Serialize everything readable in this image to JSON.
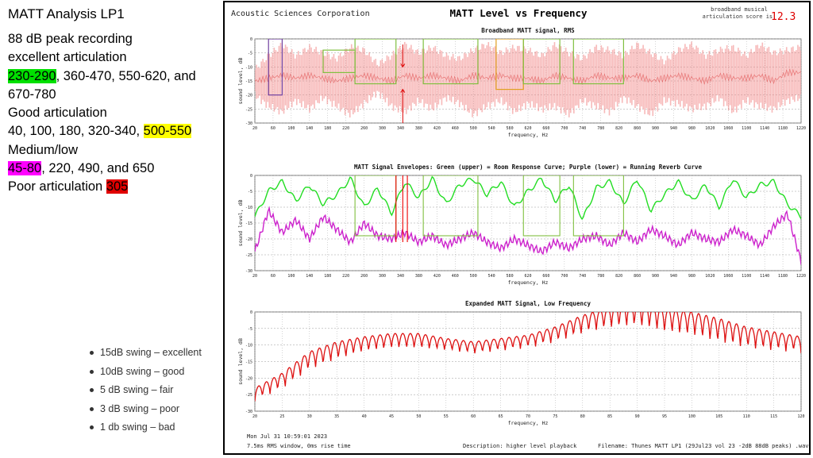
{
  "left_panel": {
    "title": "MATT Analysis LP1",
    "lines": [
      [
        {
          "t": "88 dB peak recording"
        }
      ],
      [
        {
          "t": "excellent articulation"
        }
      ],
      [
        {
          "t": "230-290",
          "hl": "green"
        },
        {
          "t": ", 360-470, 550-620, and"
        }
      ],
      [
        {
          "t": "670-780"
        }
      ],
      [
        {
          "t": "Good articulation"
        }
      ],
      [
        {
          "t": "40, 100, 180, 320-340, "
        },
        {
          "t": "500-550",
          "hl": "yellow"
        }
      ],
      [
        {
          "t": "Medium/low"
        }
      ],
      [
        {
          "t": "45-80",
          "hl": "magenta"
        },
        {
          "t": ", 220, 490, and 650"
        }
      ],
      [
        {
          "t": "Poor articulation "
        },
        {
          "t": "305",
          "hl": "red"
        }
      ]
    ],
    "bullets": [
      "15dB swing – excellent",
      "10dB swing – good",
      "5 dB swing – fair",
      "3 dB swing – poor",
      "1 db swing – bad"
    ]
  },
  "figure": {
    "company": "Acoustic Sciences Corporation",
    "main_title": "MATT Level vs Frequency",
    "score_label_1": "broadband musical",
    "score_label_2": "articulation score is:",
    "score_value": "12.3",
    "footer_date": "Mon Jul 31 10:59:01 2023",
    "footer_window": "7.5ms RMS window, 0ms rise time",
    "footer_description": "Description: higher level playback",
    "footer_filename": "Filename: Thunes MATT LP1 (29Jul23 vol 23 -2dB 88dB peaks) .wav",
    "colors": {
      "broadband": "#f08080",
      "upper": "#22dd22",
      "lower": "#cc22cc",
      "low_freq": "#dd1111",
      "score": "#dd0000"
    }
  },
  "chart_data": [
    {
      "type": "area",
      "title": "Broadband MATT signal, RMS",
      "xlabel": "frequency, Hz",
      "ylabel": "sound level, dB",
      "xlim": [
        20,
        1220
      ],
      "ylim": [
        -30,
        0
      ],
      "xticks": [
        20,
        60,
        100,
        140,
        180,
        220,
        260,
        300,
        340,
        380,
        420,
        460,
        500,
        540,
        580,
        620,
        660,
        700,
        740,
        780,
        820,
        860,
        900,
        940,
        980,
        1020,
        1060,
        1100,
        1140,
        1180,
        1220
      ],
      "xtick_labels": [
        "20",
        "60",
        "100",
        "140",
        "180",
        "220",
        "260",
        "300",
        "340",
        "380",
        "420",
        "460",
        "500",
        "540",
        "580",
        "620",
        "660",
        "700",
        "740",
        "780",
        "820",
        "860",
        "900",
        "940",
        "980",
        "1020",
        "1060",
        "1100",
        "1140",
        "1180",
        "1220"
      ],
      "yticks": [
        0,
        -5,
        -10,
        -15,
        -20,
        -25,
        -30
      ],
      "ytick_labels": [
        "0",
        "-5",
        "-10",
        "-15",
        "-20",
        "-25",
        "-30"
      ],
      "x": [
        20,
        50,
        80,
        110,
        140,
        170,
        200,
        230,
        260,
        290,
        320,
        350,
        380,
        410,
        440,
        470,
        500,
        530,
        560,
        590,
        620,
        650,
        680,
        710,
        740,
        770,
        800,
        830,
        860,
        890,
        920,
        950,
        980,
        1010,
        1040,
        1070,
        1100,
        1130,
        1160,
        1190,
        1220
      ],
      "upper": [
        -11,
        -6,
        -2,
        -6,
        -3,
        -5,
        -7,
        -3,
        -4,
        -9,
        -6,
        -2,
        -5,
        -3,
        -6,
        -7,
        -4,
        -2,
        -5,
        -3,
        -4,
        -6,
        -2,
        -5,
        -7,
        -3,
        -4,
        -6,
        -2,
        -5,
        -8,
        -4,
        -2,
        -6,
        -4,
        -3,
        -6,
        -2,
        -5,
        -4,
        -3
      ],
      "lower": [
        -20,
        -24,
        -26,
        -22,
        -25,
        -21,
        -24,
        -27,
        -23,
        -19,
        -24,
        -26,
        -22,
        -25,
        -21,
        -23,
        -27,
        -24,
        -22,
        -26,
        -23,
        -25,
        -24,
        -27,
        -22,
        -24,
        -26,
        -21,
        -24,
        -27,
        -22,
        -23,
        -25,
        -24,
        -21,
        -26,
        -22,
        -24,
        -25,
        -22,
        -21
      ],
      "center": [
        -15,
        -14,
        -13,
        -14,
        -13,
        -14,
        -15,
        -14,
        -13,
        -14,
        -15,
        -13,
        -14,
        -13,
        -14,
        -15,
        -13,
        -14,
        -13,
        -14,
        -14,
        -15,
        -13,
        -14,
        -15,
        -13,
        -14,
        -14,
        -13,
        -15,
        -14,
        -13,
        -14,
        -15,
        -13,
        -14,
        -14,
        -13,
        -15,
        -12,
        -12
      ],
      "boxes": [
        {
          "x0": 50,
          "x1": 80,
          "y0": 0,
          "y1": -20,
          "color": "#7040a0"
        },
        {
          "x0": 170,
          "x1": 240,
          "y0": -4,
          "y1": -12,
          "color": "#80c040"
        },
        {
          "x0": 240,
          "x1": 330,
          "y0": 0,
          "y1": -16,
          "color": "#80c040"
        },
        {
          "x0": 390,
          "x1": 510,
          "y0": 0,
          "y1": -16,
          "color": "#80c040"
        },
        {
          "x0": 550,
          "x1": 610,
          "y0": 0,
          "y1": -18,
          "color": "#e0a020"
        },
        {
          "x0": 610,
          "x1": 690,
          "y0": 0,
          "y1": -16,
          "color": "#80c040"
        },
        {
          "x0": 720,
          "x1": 830,
          "y0": 0,
          "y1": -16,
          "color": "#80c040"
        }
      ],
      "arrows": [
        {
          "x": 345,
          "y_from": -2,
          "y_to": -10
        },
        {
          "x": 345,
          "y_from": -30,
          "y_to": -18
        }
      ]
    },
    {
      "type": "line",
      "title": "MATT Signal Envelopes: Green (upper) = Room Response Curve; Purple (lower) = Running Reverb Curve",
      "xlabel": "frequency, Hz",
      "ylabel": "sound level, dB",
      "xlim": [
        20,
        1220
      ],
      "ylim": [
        -30,
        0
      ],
      "xticks": [
        20,
        60,
        100,
        140,
        180,
        220,
        260,
        300,
        340,
        380,
        420,
        460,
        500,
        540,
        580,
        620,
        660,
        700,
        740,
        780,
        820,
        860,
        900,
        940,
        980,
        1020,
        1060,
        1100,
        1140,
        1180,
        1220
      ],
      "xtick_labels": [
        "20",
        "60",
        "100",
        "140",
        "180",
        "220",
        "260",
        "300",
        "340",
        "380",
        "420",
        "460",
        "500",
        "540",
        "580",
        "620",
        "660",
        "700",
        "740",
        "780",
        "820",
        "860",
        "900",
        "940",
        "980",
        "1020",
        "1060",
        "1100",
        "1140",
        "1180",
        "1220"
      ],
      "yticks": [
        0,
        -5,
        -10,
        -15,
        -20,
        -25,
        -30
      ],
      "ytick_labels": [
        "0",
        "-5",
        "-10",
        "-15",
        "-20",
        "-25",
        "-30"
      ],
      "series": [
        {
          "x": [
            20,
            50,
            80,
            110,
            140,
            170,
            200,
            230,
            260,
            290,
            320,
            350,
            380,
            410,
            440,
            470,
            500,
            530,
            560,
            590,
            620,
            650,
            680,
            710,
            740,
            770,
            800,
            830,
            860,
            890,
            920,
            950,
            980,
            1010,
            1040,
            1070,
            1100,
            1130,
            1160,
            1190,
            1220
          ],
          "values": [
            -13,
            -5,
            -2,
            -8,
            -3,
            -9,
            -6,
            -1,
            -10,
            -4,
            -12,
            -2,
            -7,
            -1,
            -9,
            -3,
            -1,
            -6,
            -2,
            -10,
            -5,
            -1,
            -8,
            -3,
            -14,
            -4,
            -2,
            -9,
            -1,
            -11,
            -6,
            -2,
            -8,
            -3,
            -10,
            -1,
            -7,
            -3,
            -2,
            -9,
            -13
          ],
          "color": "#22dd22"
        },
        {
          "x": [
            20,
            50,
            80,
            110,
            140,
            170,
            200,
            230,
            260,
            290,
            320,
            350,
            380,
            410,
            440,
            470,
            500,
            530,
            560,
            590,
            620,
            650,
            680,
            710,
            740,
            770,
            800,
            830,
            860,
            890,
            920,
            950,
            980,
            1010,
            1040,
            1070,
            1100,
            1130,
            1160,
            1190,
            1220
          ],
          "values": [
            -24,
            -11,
            -18,
            -14,
            -20,
            -13,
            -17,
            -21,
            -15,
            -19,
            -20,
            -18,
            -21,
            -19,
            -22,
            -20,
            -18,
            -21,
            -23,
            -20,
            -22,
            -24,
            -21,
            -23,
            -20,
            -19,
            -22,
            -18,
            -21,
            -17,
            -19,
            -22,
            -18,
            -20,
            -21,
            -17,
            -19,
            -22,
            -16,
            -12,
            -27
          ],
          "color": "#cc22cc"
        }
      ],
      "boxes": [
        {
          "x0": 240,
          "x1": 330,
          "y0": 0,
          "y1": -19,
          "color": "#80c040"
        },
        {
          "x0": 390,
          "x1": 510,
          "y0": 0,
          "y1": -19,
          "color": "#80c040"
        },
        {
          "x0": 610,
          "x1": 690,
          "y0": 0,
          "y1": -19,
          "color": "#80c040"
        },
        {
          "x0": 720,
          "x1": 830,
          "y0": 0,
          "y1": -19,
          "color": "#80c040"
        }
      ],
      "markers": [
        {
          "x": 330,
          "color": "#ee0000"
        },
        {
          "x": 345,
          "color": "#ee0000"
        },
        {
          "x": 355,
          "color": "#ee0000"
        }
      ]
    },
    {
      "type": "line",
      "title": "Expanded MATT Signal, Low Frequency",
      "xlabel": "frequency, Hz",
      "ylabel": "sound level, dB",
      "xlim": [
        20,
        120
      ],
      "ylim": [
        -30,
        0
      ],
      "xticks": [
        20,
        25,
        30,
        35,
        40,
        45,
        50,
        55,
        60,
        65,
        70,
        75,
        80,
        85,
        90,
        95,
        100,
        105,
        110,
        115,
        120
      ],
      "xtick_labels": [
        "20",
        "25",
        "30",
        "35",
        "40",
        "45",
        "50",
        "55",
        "60",
        "65",
        "70",
        "75",
        "80",
        "85",
        "90",
        "95",
        "100",
        "105",
        "110",
        "115",
        "120"
      ],
      "yticks": [
        0,
        -5,
        -10,
        -15,
        -20,
        -25,
        -30
      ],
      "ytick_labels": [
        "0",
        "-5",
        "-10",
        "-15",
        "-20",
        "-25",
        "-30"
      ],
      "series": [
        {
          "x": [
            20,
            25,
            30,
            35,
            40,
            45,
            50,
            55,
            60,
            65,
            70,
            75,
            80,
            85,
            90,
            95,
            100,
            105,
            110,
            115,
            120
          ],
          "values": [
            -25,
            -21,
            -15,
            -12,
            -10,
            -9,
            -9,
            -10,
            -11,
            -10,
            -9,
            -7,
            -4,
            -2,
            -1,
            -3,
            -4,
            -6,
            -8,
            -9,
            -10
          ],
          "swing": [
            4,
            5,
            6,
            6,
            5,
            5,
            5,
            4,
            4,
            4,
            4,
            5,
            6,
            7,
            8,
            8,
            8,
            8,
            7,
            6,
            5
          ],
          "cycles": 72,
          "color": "#dd1111"
        }
      ]
    }
  ]
}
